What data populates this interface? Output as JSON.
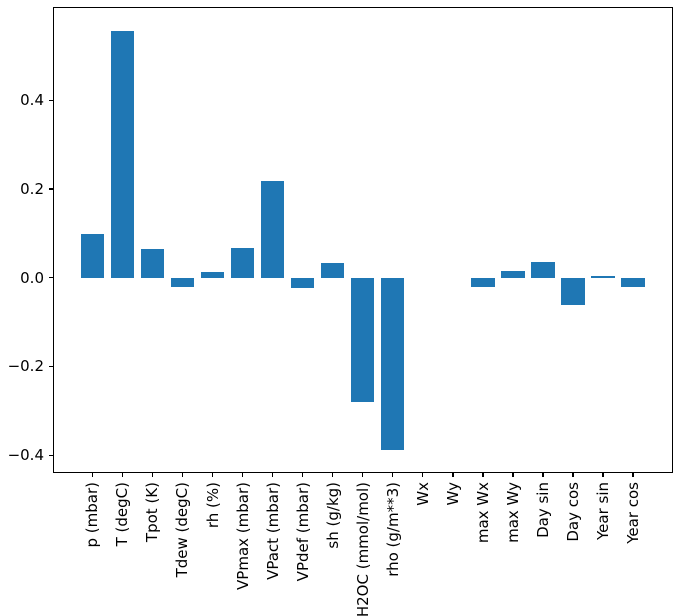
{
  "figure": {
    "background": "#ffffff",
    "plot_background": "#ffffff",
    "spine_color": "#000000",
    "tick_color": "#000000",
    "label_color": "#000000"
  },
  "chart_data": {
    "type": "bar",
    "title": "",
    "xlabel": "",
    "ylabel": "",
    "categories": [
      "p (mbar)",
      "T (degC)",
      "Tpot (K)",
      "Tdew (degC)",
      "rh (%)",
      "VPmax (mbar)",
      "VPact (mbar)",
      "VPdef (mbar)",
      "sh (g/kg)",
      "H2OC (mmol/mol)",
      "rho (g/m**3)",
      "Wx",
      "Wy",
      "max Wx",
      "max Wy",
      "Day sin",
      "Day cos",
      "Year sin",
      "Year cos"
    ],
    "values": [
      0.098,
      0.555,
      0.064,
      -0.021,
      0.013,
      0.067,
      0.219,
      -0.023,
      0.034,
      -0.28,
      -0.389,
      0.0,
      0.0,
      -0.021,
      0.016,
      0.036,
      -0.062,
      0.004,
      -0.022
    ],
    "bar_color": "#1f77b4",
    "bar_width": 0.78,
    "xlim": [
      -1.31,
      19.33
    ],
    "ylim": [
      -0.44,
      0.61
    ],
    "yticks": [
      0.4,
      0.2,
      0.0,
      -0.2,
      -0.4
    ],
    "ytick_labels": [
      "0.4",
      "0.2",
      "0.0",
      "−0.2",
      "−0.4"
    ],
    "x_tick_rotation": 90,
    "grid": false,
    "legend": null
  }
}
